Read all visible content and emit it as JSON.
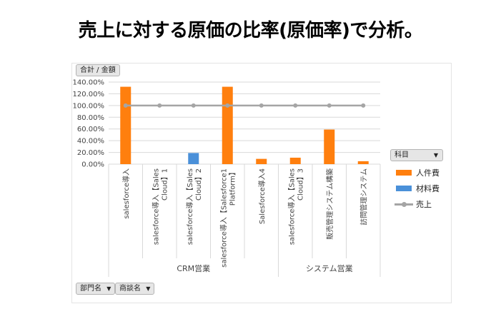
{
  "title": "売上に対する原価の比率(原価率)で分析。",
  "value_filter_label": "合計 / 金額",
  "legend_filter_label": "科目",
  "row_filters": [
    {
      "label": "部門名"
    },
    {
      "label": "商談名"
    }
  ],
  "icons": {
    "dropdown": "dropdown-arrow-icon"
  },
  "colors": {
    "人件費": "#ff7f0e",
    "材料費": "#4a90d9",
    "売上": "#a5a5a5",
    "grid": "#d9d9d9",
    "axis_text": "#444444"
  },
  "chart_data": {
    "type": "bar",
    "title": "",
    "ylim": [
      0,
      140
    ],
    "y_ticks": [
      "0.00%",
      "20.00%",
      "40.00%",
      "60.00%",
      "80.00%",
      "100.00%",
      "120.00%",
      "140.00%"
    ],
    "y_tick_values": [
      0,
      20,
      40,
      60,
      80,
      100,
      120,
      140
    ],
    "categories": [
      [
        "salesforce導入"
      ],
      [
        "salesforce導入【Sales",
        "Cloud】1"
      ],
      [
        "salesforce導入【Sales",
        "Cloud】2"
      ],
      [
        "salesforce導入【Salesforce1",
        "Platform】"
      ],
      [
        "Salesforce導入4"
      ],
      [
        "salesforce導入【Sales",
        "Cloud】3"
      ],
      [
        "販売管理システム構築"
      ],
      [
        "訪問管理システム"
      ]
    ],
    "groups": [
      {
        "name": "CRM営業",
        "count": 5
      },
      {
        "name": "システム営業",
        "count": 3
      }
    ],
    "series": [
      {
        "name": "人件費",
        "type": "bar",
        "values": [
          132,
          0,
          0,
          132,
          9,
          11,
          59,
          5
        ]
      },
      {
        "name": "材料費",
        "type": "bar",
        "values": [
          0,
          0,
          19,
          0,
          0,
          0,
          0,
          0
        ]
      },
      {
        "name": "売上",
        "type": "line",
        "values": [
          100,
          100,
          100,
          100,
          100,
          100,
          100,
          100
        ]
      }
    ],
    "legend_position": "right",
    "grid": true
  }
}
